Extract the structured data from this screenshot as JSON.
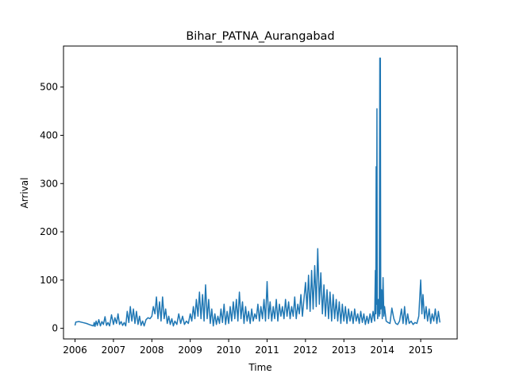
{
  "chart_data": {
    "type": "line",
    "title": "Bihar_PATNA_Aurangabad",
    "xlabel": "Time",
    "ylabel": "Arrival",
    "xlim": [
      2005.7,
      2015.95
    ],
    "ylim": [
      -22,
      585
    ],
    "x_ticks": [
      "2006",
      "2007",
      "2008",
      "2009",
      "2010",
      "2011",
      "2012",
      "2013",
      "2014",
      "2015"
    ],
    "y_ticks": [
      0,
      100,
      200,
      300,
      400,
      500
    ],
    "grid": false,
    "legend": "none",
    "series": [
      {
        "color": "#1f77b4",
        "points": [
          [
            2006.0,
            6
          ],
          [
            2006.02,
            13
          ],
          [
            2006.1,
            14
          ],
          [
            2006.2,
            12
          ],
          [
            2006.3,
            10
          ],
          [
            2006.4,
            7
          ],
          [
            2006.48,
            5
          ],
          [
            2006.5,
            12
          ],
          [
            2006.52,
            4
          ],
          [
            2006.55,
            15
          ],
          [
            2006.58,
            6
          ],
          [
            2006.62,
            18
          ],
          [
            2006.66,
            5
          ],
          [
            2006.7,
            14
          ],
          [
            2006.74,
            8
          ],
          [
            2006.78,
            24
          ],
          [
            2006.82,
            6
          ],
          [
            2006.86,
            12
          ],
          [
            2006.9,
            5
          ],
          [
            2006.95,
            28
          ],
          [
            2007.0,
            8
          ],
          [
            2007.04,
            22
          ],
          [
            2007.08,
            10
          ],
          [
            2007.12,
            30
          ],
          [
            2007.16,
            8
          ],
          [
            2007.2,
            14
          ],
          [
            2007.24,
            6
          ],
          [
            2007.28,
            12
          ],
          [
            2007.32,
            5
          ],
          [
            2007.36,
            35
          ],
          [
            2007.4,
            12
          ],
          [
            2007.44,
            45
          ],
          [
            2007.48,
            15
          ],
          [
            2007.52,
            40
          ],
          [
            2007.56,
            10
          ],
          [
            2007.6,
            35
          ],
          [
            2007.64,
            8
          ],
          [
            2007.68,
            25
          ],
          [
            2007.72,
            6
          ],
          [
            2007.76,
            15
          ],
          [
            2007.8,
            5
          ],
          [
            2007.85,
            18
          ],
          [
            2007.9,
            22
          ],
          [
            2007.95,
            20
          ],
          [
            2008.0,
            25
          ],
          [
            2008.04,
            45
          ],
          [
            2008.08,
            30
          ],
          [
            2008.12,
            65
          ],
          [
            2008.16,
            20
          ],
          [
            2008.2,
            55
          ],
          [
            2008.24,
            15
          ],
          [
            2008.28,
            65
          ],
          [
            2008.32,
            20
          ],
          [
            2008.36,
            40
          ],
          [
            2008.4,
            10
          ],
          [
            2008.44,
            25
          ],
          [
            2008.48,
            8
          ],
          [
            2008.52,
            20
          ],
          [
            2008.56,
            5
          ],
          [
            2008.6,
            15
          ],
          [
            2008.65,
            8
          ],
          [
            2008.7,
            30
          ],
          [
            2008.75,
            10
          ],
          [
            2008.8,
            25
          ],
          [
            2008.85,
            8
          ],
          [
            2008.9,
            15
          ],
          [
            2008.95,
            10
          ],
          [
            2009.0,
            30
          ],
          [
            2009.04,
            15
          ],
          [
            2009.08,
            45
          ],
          [
            2009.12,
            20
          ],
          [
            2009.16,
            60
          ],
          [
            2009.2,
            25
          ],
          [
            2009.24,
            75
          ],
          [
            2009.28,
            20
          ],
          [
            2009.32,
            70
          ],
          [
            2009.36,
            15
          ],
          [
            2009.4,
            90
          ],
          [
            2009.44,
            20
          ],
          [
            2009.48,
            60
          ],
          [
            2009.52,
            10
          ],
          [
            2009.56,
            40
          ],
          [
            2009.6,
            5
          ],
          [
            2009.64,
            30
          ],
          [
            2009.68,
            8
          ],
          [
            2009.72,
            25
          ],
          [
            2009.76,
            10
          ],
          [
            2009.8,
            40
          ],
          [
            2009.84,
            12
          ],
          [
            2009.88,
            50
          ],
          [
            2009.92,
            8
          ],
          [
            2009.96,
            35
          ],
          [
            2010.0,
            10
          ],
          [
            2010.04,
            45
          ],
          [
            2010.08,
            15
          ],
          [
            2010.12,
            55
          ],
          [
            2010.16,
            20
          ],
          [
            2010.2,
            60
          ],
          [
            2010.24,
            15
          ],
          [
            2010.28,
            75
          ],
          [
            2010.32,
            20
          ],
          [
            2010.36,
            55
          ],
          [
            2010.4,
            10
          ],
          [
            2010.44,
            45
          ],
          [
            2010.48,
            15
          ],
          [
            2010.52,
            35
          ],
          [
            2010.56,
            10
          ],
          [
            2010.6,
            40
          ],
          [
            2010.64,
            15
          ],
          [
            2010.68,
            30
          ],
          [
            2010.72,
            20
          ],
          [
            2010.76,
            50
          ],
          [
            2010.8,
            15
          ],
          [
            2010.84,
            45
          ],
          [
            2010.88,
            20
          ],
          [
            2010.92,
            60
          ],
          [
            2010.96,
            15
          ],
          [
            2011.0,
            97
          ],
          [
            2011.04,
            20
          ],
          [
            2011.08,
            55
          ],
          [
            2011.12,
            15
          ],
          [
            2011.16,
            45
          ],
          [
            2011.2,
            20
          ],
          [
            2011.24,
            60
          ],
          [
            2011.28,
            15
          ],
          [
            2011.32,
            50
          ],
          [
            2011.36,
            25
          ],
          [
            2011.4,
            45
          ],
          [
            2011.44,
            20
          ],
          [
            2011.48,
            60
          ],
          [
            2011.52,
            25
          ],
          [
            2011.56,
            55
          ],
          [
            2011.6,
            20
          ],
          [
            2011.64,
            45
          ],
          [
            2011.68,
            25
          ],
          [
            2011.72,
            65
          ],
          [
            2011.76,
            20
          ],
          [
            2011.8,
            50
          ],
          [
            2011.84,
            30
          ],
          [
            2011.88,
            70
          ],
          [
            2011.92,
            25
          ],
          [
            2011.96,
            60
          ],
          [
            2012.0,
            95
          ],
          [
            2012.04,
            40
          ],
          [
            2012.08,
            110
          ],
          [
            2012.12,
            35
          ],
          [
            2012.16,
            120
          ],
          [
            2012.2,
            40
          ],
          [
            2012.24,
            130
          ],
          [
            2012.28,
            45
          ],
          [
            2012.32,
            165
          ],
          [
            2012.36,
            50
          ],
          [
            2012.4,
            115
          ],
          [
            2012.44,
            30
          ],
          [
            2012.48,
            90
          ],
          [
            2012.52,
            25
          ],
          [
            2012.56,
            80
          ],
          [
            2012.6,
            20
          ],
          [
            2012.64,
            75
          ],
          [
            2012.68,
            15
          ],
          [
            2012.72,
            70
          ],
          [
            2012.76,
            20
          ],
          [
            2012.8,
            60
          ],
          [
            2012.84,
            15
          ],
          [
            2012.88,
            55
          ],
          [
            2012.92,
            10
          ],
          [
            2012.96,
            50
          ],
          [
            2013.0,
            15
          ],
          [
            2013.04,
            45
          ],
          [
            2013.08,
            10
          ],
          [
            2013.12,
            40
          ],
          [
            2013.16,
            15
          ],
          [
            2013.2,
            35
          ],
          [
            2013.24,
            10
          ],
          [
            2013.28,
            40
          ],
          [
            2013.32,
            15
          ],
          [
            2013.36,
            30
          ],
          [
            2013.4,
            10
          ],
          [
            2013.44,
            35
          ],
          [
            2013.48,
            12
          ],
          [
            2013.52,
            30
          ],
          [
            2013.56,
            8
          ],
          [
            2013.6,
            25
          ],
          [
            2013.64,
            10
          ],
          [
            2013.68,
            30
          ],
          [
            2013.72,
            12
          ],
          [
            2013.76,
            35
          ],
          [
            2013.8,
            15
          ],
          [
            2013.82,
            120
          ],
          [
            2013.83,
            30
          ],
          [
            2013.84,
            335
          ],
          [
            2013.85,
            50
          ],
          [
            2013.86,
            455
          ],
          [
            2013.87,
            40
          ],
          [
            2013.88,
            20
          ],
          [
            2013.9,
            60
          ],
          [
            2013.92,
            25
          ],
          [
            2013.935,
            560
          ],
          [
            2013.94,
            30
          ],
          [
            2013.95,
            560
          ],
          [
            2013.96,
            40
          ],
          [
            2013.98,
            80
          ],
          [
            2014.0,
            20
          ],
          [
            2014.02,
            105
          ],
          [
            2014.04,
            25
          ],
          [
            2014.06,
            45
          ],
          [
            2014.1,
            15
          ],
          [
            2014.15,
            12
          ],
          [
            2014.2,
            10
          ],
          [
            2014.25,
            42
          ],
          [
            2014.3,
            20
          ],
          [
            2014.35,
            10
          ],
          [
            2014.4,
            8
          ],
          [
            2014.45,
            15
          ],
          [
            2014.5,
            40
          ],
          [
            2014.54,
            10
          ],
          [
            2014.58,
            45
          ],
          [
            2014.62,
            8
          ],
          [
            2014.66,
            30
          ],
          [
            2014.7,
            10
          ],
          [
            2014.75,
            15
          ],
          [
            2014.8,
            8
          ],
          [
            2014.85,
            12
          ],
          [
            2014.9,
            10
          ],
          [
            2014.95,
            25
          ],
          [
            2015.0,
            100
          ],
          [
            2015.03,
            30
          ],
          [
            2015.06,
            70
          ],
          [
            2015.1,
            20
          ],
          [
            2015.14,
            45
          ],
          [
            2015.18,
            15
          ],
          [
            2015.22,
            40
          ],
          [
            2015.26,
            10
          ],
          [
            2015.3,
            30
          ],
          [
            2015.34,
            15
          ],
          [
            2015.38,
            40
          ],
          [
            2015.42,
            10
          ],
          [
            2015.46,
            35
          ],
          [
            2015.5,
            12
          ]
        ]
      }
    ]
  }
}
